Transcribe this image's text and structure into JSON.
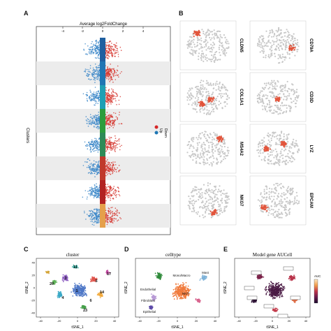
{
  "panel_labels": {
    "a": "A",
    "b": "B",
    "c": "C",
    "d": "D",
    "e": "E"
  },
  "panel_a": {
    "title": "Average log2FoldChange",
    "xticks": [
      "-4",
      "-2",
      "0",
      "2",
      "4"
    ],
    "ylabel": "Clusters",
    "legend": {
      "items": [
        "Up",
        "Down"
      ],
      "colors": [
        "#d62728",
        "#1f77b4"
      ]
    },
    "cluster_colors": [
      "#1f5fa0",
      "#1f76b4",
      "#1f9fb4",
      "#2c9d3c",
      "#2e8b57",
      "#c0392b",
      "#b22222",
      "#e5a04b"
    ]
  },
  "panel_b": {
    "genes": [
      "CLDN5",
      "CD79A",
      "COL1A1",
      "CD3D",
      "MS4A2",
      "LYZ",
      "NKG7",
      "EPCAM"
    ],
    "low_color": "#c8c8c8",
    "high_color": "#e2553c"
  },
  "panel_c": {
    "title": "cluster",
    "xlabel": "tSNE_1",
    "ylabel": "tSNE_2",
    "xticks": [
      "-40",
      "-20",
      "0",
      "20",
      "40"
    ],
    "yticks": [
      "40",
      "20",
      "0",
      "-20",
      "-40"
    ],
    "cluster_numbers": [
      "3",
      "20",
      "1",
      "4",
      "6",
      "5",
      "17",
      "23",
      "14",
      "11"
    ]
  },
  "panel_d": {
    "title": "celltype",
    "xlabel": "tSNE_1",
    "ylabel": "tSNE_2",
    "xticks": [
      "-40",
      "-20",
      "0",
      "20",
      "40"
    ],
    "cell_types": [
      "Mono/Macro",
      "Mast",
      "Endothelial",
      "Fibroblast",
      "NK/T",
      "Epithelial"
    ]
  },
  "panel_e": {
    "title": "Model gene AUCell",
    "xlabel": "tSNE_1",
    "ylabel": "tSNE_2",
    "xticks": [
      "-40",
      "-20",
      "0",
      "20",
      "40"
    ],
    "colorbar_title": "AUC",
    "colorbar_colors": [
      "#1a0a2e",
      "#6a1b4d",
      "#c2364b",
      "#f29e4c",
      "#fde8c4"
    ]
  }
}
